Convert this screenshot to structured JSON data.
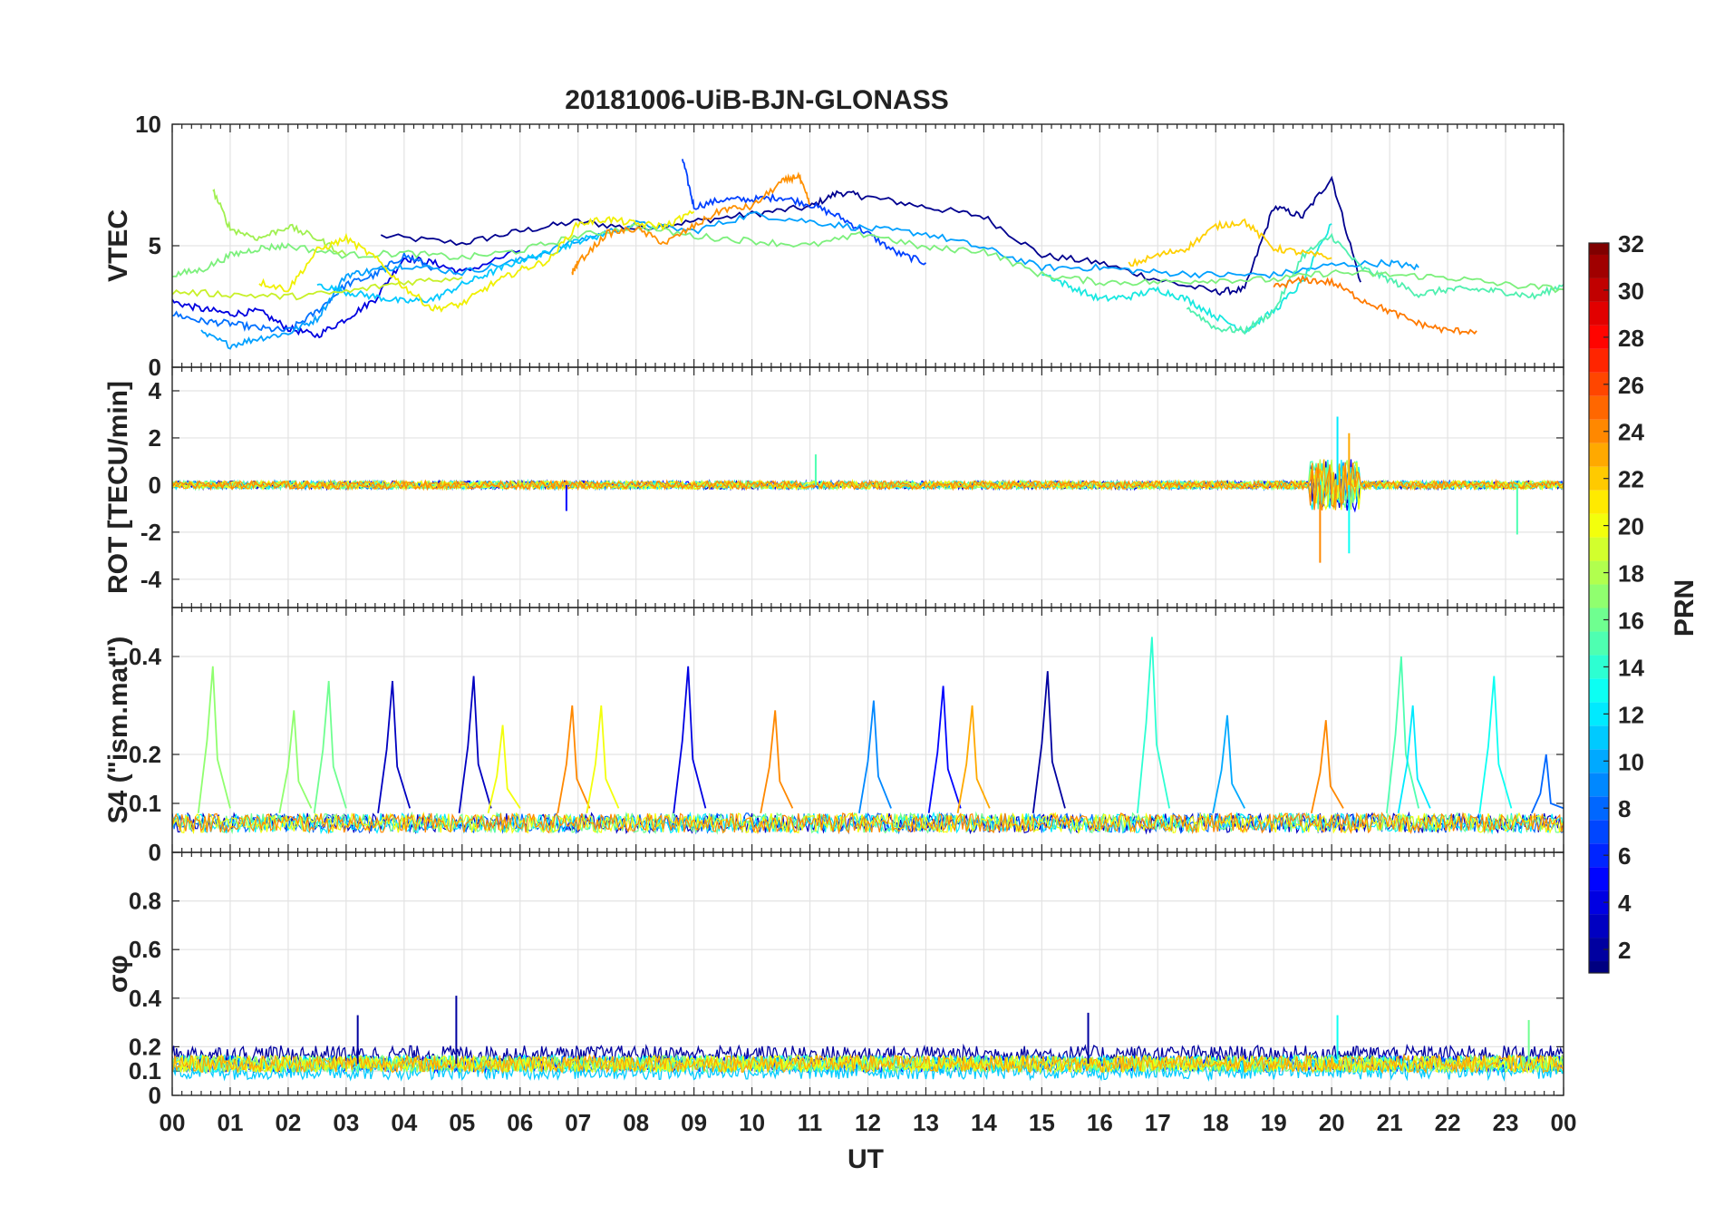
{
  "chart_data": {
    "type": "line",
    "title": "20181006-UiB-BJN-GLONASS",
    "xlabel": "UT",
    "x_tick_labels": [
      "00",
      "01",
      "02",
      "03",
      "04",
      "05",
      "06",
      "07",
      "08",
      "09",
      "10",
      "11",
      "12",
      "13",
      "14",
      "15",
      "16",
      "17",
      "18",
      "19",
      "20",
      "21",
      "22",
      "23",
      "00"
    ],
    "xlim_hours": [
      0,
      24
    ],
    "grid": true,
    "colorbar": {
      "label": "PRN",
      "range": [
        1,
        32
      ],
      "tick_labels": [
        "2",
        "4",
        "6",
        "8",
        "10",
        "12",
        "14",
        "16",
        "18",
        "20",
        "22",
        "24",
        "26",
        "28",
        "30",
        "32"
      ],
      "colormap": "jet"
    },
    "panels": [
      {
        "id": "vtec",
        "ylabel": "VTEC",
        "ylim": [
          0,
          10
        ],
        "y_tick_labels": [
          "0",
          "5",
          "10"
        ],
        "series": [
          {
            "prn": 1,
            "color": "#00008f",
            "x": [
              3.6,
              5,
              6,
              7,
              8,
              9,
              10,
              11,
              11.5,
              12,
              13,
              14,
              15,
              16,
              17,
              18,
              18.5,
              19,
              19.5,
              20,
              20.5
            ],
            "y": [
              5.4,
              5.1,
              5.6,
              6,
              5.7,
              6,
              6.3,
              6.6,
              7.2,
              7.0,
              6.6,
              6.2,
              4.6,
              4.3,
              3.6,
              3.1,
              3.2,
              6.6,
              6.2,
              7.8,
              3.5
            ]
          },
          {
            "prn": 3,
            "color": "#0000e0",
            "x": [
              0,
              0.5,
              1,
              1.5,
              2,
              2.5,
              3,
              3.5,
              4,
              4.5,
              5,
              6
            ],
            "y": [
              2.7,
              2.4,
              2.2,
              2.3,
              1.6,
              1.3,
              2.0,
              2.8,
              4.5,
              4.3,
              3.9,
              4.8
            ]
          },
          {
            "prn": 5,
            "color": "#0040ff",
            "x": [
              8.8,
              9,
              9.5,
              10,
              10.5,
              11,
              11.5,
              12,
              12.5,
              13
            ],
            "y": [
              8.6,
              6.6,
              6.9,
              6.9,
              7.0,
              6.7,
              6.2,
              5.5,
              4.7,
              4.3
            ]
          },
          {
            "prn": 7,
            "color": "#0070ff",
            "x": [
              0,
              0.5,
              1,
              1.5,
              2,
              2.5,
              3,
              3.5,
              4,
              4.5
            ],
            "y": [
              2.2,
              1.9,
              1.8,
              1.6,
              1.5,
              2.3,
              3.4,
              3.8,
              4.6,
              4.1
            ]
          },
          {
            "prn": 9,
            "color": "#00a0ff",
            "x": [
              0.5,
              1,
              1.5,
              2,
              2.5,
              3,
              3.5,
              4,
              5,
              6,
              7,
              8,
              9,
              10,
              11,
              12,
              13,
              14,
              15,
              16,
              17,
              18,
              19,
              20,
              21,
              21.5
            ],
            "y": [
              1.4,
              0.9,
              1.2,
              1.4,
              2.0,
              3.8,
              4.0,
              4.2,
              3.9,
              4.4,
              5.2,
              5.9,
              5.6,
              6.3,
              6.0,
              5.7,
              5.5,
              4.9,
              4.1,
              4.1,
              3.9,
              3.8,
              3.8,
              4.2,
              4.3,
              4.1
            ]
          },
          {
            "prn": 11,
            "color": "#00c8ff",
            "x": [
              2.5,
              3,
              3.5,
              4,
              4.5,
              5,
              5.5,
              6,
              6.5,
              7,
              7.5
            ],
            "y": [
              3.4,
              3.1,
              2.9,
              2.7,
              2.8,
              3.4,
              3.9,
              4.4,
              4.7,
              5.2,
              5.5
            ]
          },
          {
            "prn": 13,
            "color": "#18e8e0",
            "x": [
              15,
              15.5,
              16,
              16.5,
              17,
              17.5,
              18,
              18.5,
              19,
              19.5,
              20
            ],
            "y": [
              3.9,
              3.3,
              2.8,
              2.9,
              3.2,
              2.8,
              2.1,
              1.5,
              2.3,
              3.5,
              5.9
            ]
          },
          {
            "prn": 15,
            "color": "#50f0b0",
            "x": [
              17.5,
              18,
              18.5,
              19,
              19.5,
              20,
              20.5,
              21,
              21.5,
              22,
              22.5,
              23,
              23.5,
              24
            ],
            "y": [
              2.5,
              1.6,
              1.5,
              2.3,
              4.6,
              5.4,
              4.1,
              3.6,
              3.0,
              3.2,
              3.2,
              3.1,
              2.9,
              3.4
            ]
          },
          {
            "prn": 16,
            "color": "#7cf07c",
            "x": [
              0,
              0.5,
              1,
              1.5,
              2,
              3,
              4,
              5,
              6,
              7,
              8,
              9,
              10,
              11,
              12,
              13,
              14,
              15,
              16,
              17,
              18,
              19,
              20,
              21,
              22,
              23,
              24
            ],
            "y": [
              3.8,
              4.0,
              4.6,
              4.9,
              5.0,
              4.6,
              4.7,
              4.5,
              4.8,
              5.4,
              5.8,
              5.4,
              5.2,
              5.0,
              5.5,
              4.9,
              4.8,
              3.8,
              3.5,
              3.5,
              3.6,
              3.6,
              3.9,
              3.8,
              3.7,
              3.4,
              3.2
            ]
          },
          {
            "prn": 17,
            "color": "#a0f050",
            "x": [
              0.7,
              1,
              1.5,
              2,
              2.5,
              3
            ],
            "y": [
              7.3,
              5.7,
              5.3,
              5.8,
              5.3,
              4.6
            ]
          },
          {
            "prn": 18,
            "color": "#c8f028",
            "x": [
              0,
              1,
              2,
              3,
              4,
              5
            ],
            "y": [
              3.1,
              3.0,
              2.9,
              3.1,
              3.5,
              3.7
            ]
          },
          {
            "prn": 20,
            "color": "#f0f000",
            "x": [
              1.5,
              2,
              2.5,
              3,
              3.5,
              4,
              4.5,
              5,
              5.5,
              6,
              6.5,
              7,
              7.5,
              8,
              8.5,
              9
            ],
            "y": [
              3.5,
              3.2,
              4.8,
              5.3,
              4.5,
              3.3,
              2.4,
              2.6,
              3.4,
              4.0,
              4.4,
              5.9,
              6.1,
              5.9,
              5.8,
              6.4
            ]
          },
          {
            "prn": 21,
            "color": "#ffd000",
            "x": [
              16.5,
              17,
              17.5,
              18,
              18.5,
              19,
              19.5,
              20
            ],
            "y": [
              4.2,
              4.6,
              4.9,
              5.8,
              6.0,
              4.9,
              4.7,
              4.5
            ]
          },
          {
            "prn": 23,
            "color": "#ff9000",
            "x": [
              6.9,
              7,
              7.5,
              8,
              8.5,
              9,
              9.5,
              10,
              10.5,
              10.8,
              11
            ],
            "y": [
              3.9,
              4.3,
              5.5,
              5.7,
              5.1,
              5.8,
              6.5,
              6.6,
              7.6,
              7.9,
              6.7
            ]
          },
          {
            "prn": 24,
            "color": "#ff7a00",
            "x": [
              19,
              19.5,
              20,
              20.5,
              21,
              21.5,
              22,
              22.5
            ],
            "y": [
              3.3,
              3.6,
              3.5,
              2.8,
              2.3,
              1.8,
              1.5,
              1.5
            ]
          }
        ]
      },
      {
        "id": "rot",
        "ylabel": "ROT [TECU/min]",
        "ylim": [
          -5.2,
          5
        ],
        "y_tick_labels": [
          "-4",
          "-2",
          "0",
          "2",
          "4"
        ],
        "series_summary": "Most PRNs near 0 within about ±0.5; burst around 19.7–20.4 UT",
        "extremes": [
          {
            "prn": 24,
            "x": 19.8,
            "y": -3.3
          },
          {
            "prn": 12,
            "x": 20.1,
            "y": 2.9
          },
          {
            "prn": 13,
            "x": 20.3,
            "y": -2.9
          },
          {
            "prn": 23,
            "x": 20.3,
            "y": 2.2
          },
          {
            "prn": 15,
            "x": 23.2,
            "y": -2.1
          },
          {
            "prn": 5,
            "x": 6.8,
            "y": -1.1
          },
          {
            "prn": 15,
            "x": 11.1,
            "y": 1.3
          }
        ]
      },
      {
        "id": "s4",
        "ylabel": "S4 (\"ism.mat\")",
        "ylim": [
          0,
          0.5
        ],
        "y_tick_labels": [
          "0",
          "0.1",
          "0.2",
          "0.4"
        ],
        "baseline": 0.06,
        "spikes": [
          {
            "x": 0.7,
            "y": 0.38,
            "prn": 17
          },
          {
            "x": 2.1,
            "y": 0.29,
            "prn": 17
          },
          {
            "x": 2.7,
            "y": 0.35,
            "prn": 16
          },
          {
            "x": 3.8,
            "y": 0.35,
            "prn": 3
          },
          {
            "x": 5.2,
            "y": 0.36,
            "prn": 3
          },
          {
            "x": 5.7,
            "y": 0.26,
            "prn": 20
          },
          {
            "x": 6.9,
            "y": 0.3,
            "prn": 24
          },
          {
            "x": 7.4,
            "y": 0.3,
            "prn": 20
          },
          {
            "x": 8.9,
            "y": 0.38,
            "prn": 4
          },
          {
            "x": 10.4,
            "y": 0.29,
            "prn": 24
          },
          {
            "x": 12.1,
            "y": 0.31,
            "prn": 9
          },
          {
            "x": 13.3,
            "y": 0.34,
            "prn": 5
          },
          {
            "x": 13.8,
            "y": 0.3,
            "prn": 23
          },
          {
            "x": 15.1,
            "y": 0.37,
            "prn": 2
          },
          {
            "x": 16.9,
            "y": 0.44,
            "prn": 14
          },
          {
            "x": 18.2,
            "y": 0.28,
            "prn": 10
          },
          {
            "x": 19.9,
            "y": 0.27,
            "prn": 24
          },
          {
            "x": 21.2,
            "y": 0.4,
            "prn": 15
          },
          {
            "x": 21.4,
            "y": 0.3,
            "prn": 12
          },
          {
            "x": 22.8,
            "y": 0.36,
            "prn": 13
          },
          {
            "x": 23.7,
            "y": 0.2,
            "prn": 8
          }
        ]
      },
      {
        "id": "sigma_phi",
        "ylabel": "σφ",
        "ylim": [
          0,
          1
        ],
        "y_tick_labels": [
          "0",
          "0.1",
          "0.2",
          "0.4",
          "0.6",
          "0.8"
        ],
        "baseline": 0.13,
        "features": [
          {
            "x": 4.9,
            "y": 0.41,
            "prn": 2
          },
          {
            "x": 3.2,
            "y": 0.33,
            "prn": 2
          },
          {
            "x": 15.8,
            "y": 0.34,
            "prn": 2
          },
          {
            "x": 20.1,
            "y": 0.33,
            "prn": 13
          },
          {
            "x": 23.4,
            "y": 0.31,
            "prn": 16
          }
        ]
      }
    ]
  }
}
